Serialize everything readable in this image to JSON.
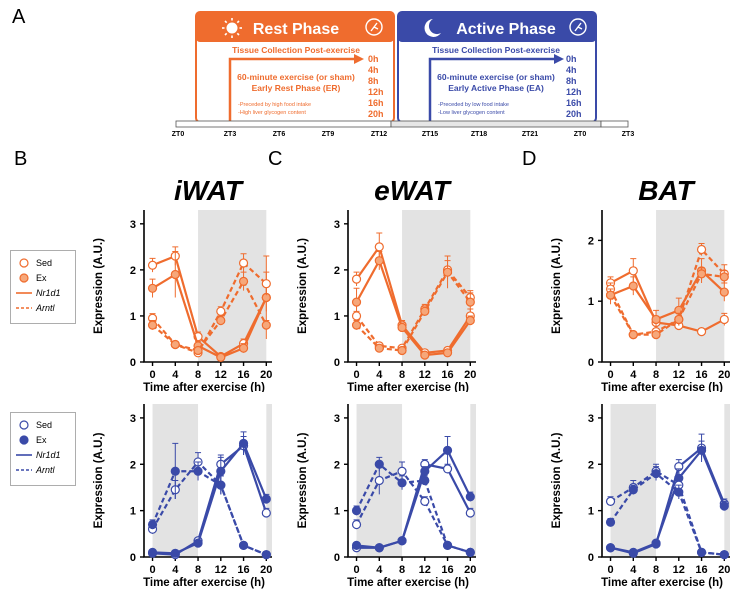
{
  "panel_letters": {
    "a": "A",
    "b": "B",
    "c": "C",
    "d": "D"
  },
  "colors": {
    "orange": "#ef6c2e",
    "blue": "#3a4aa8",
    "gray": "#e3e3e3"
  },
  "timeline": {
    "rest": {
      "title": "Rest Phase",
      "collection": "Tissue Collection Post-exercise",
      "exercise": "60-minute exercise (or sham)",
      "phase": "Early Rest Phase (ER)",
      "notes": [
        "-Preceded by high food intake",
        "-High liver glycogen content"
      ],
      "hours": [
        "0h",
        "4h",
        "8h",
        "12h",
        "16h",
        "20h"
      ]
    },
    "active": {
      "title": "Active Phase",
      "collection": "Tissue Collection Post-exercise",
      "exercise": "60-minute exercise (or sham)",
      "phase": "Early Active Phase (EA)",
      "notes": [
        "-Preceded by low food intake",
        "-Low liver glycogen content"
      ],
      "hours": [
        "0h",
        "4h",
        "8h",
        "12h",
        "16h",
        "20h"
      ]
    },
    "zt_labels": [
      "ZT0",
      "ZT3",
      "ZT6",
      "ZT9",
      "ZT12",
      "ZT15",
      "ZT18",
      "ZT21",
      "ZT0",
      "ZT3"
    ]
  },
  "legends": {
    "sed": "Sed",
    "ex": "Ex",
    "nr1d1": "Nr1d1",
    "arntl": "Arntl"
  },
  "chart_data": [
    {
      "type": "line",
      "title": "iWAT",
      "row": "rest",
      "xlabel": "Time after exercise (h)",
      "ylabel": "Expression (A.U.)",
      "x": [
        0,
        4,
        8,
        12,
        16,
        20
      ],
      "ylim": [
        0,
        3
      ],
      "yticks": [
        0,
        1,
        2,
        3
      ],
      "shade": [
        8,
        20
      ],
      "series": [
        {
          "name": "Sed Nr1d1",
          "values": [
            2.1,
            2.3,
            0.55,
            0.12,
            0.4,
            1.4
          ],
          "err": [
            0.15,
            0.2,
            0.1,
            0.05,
            0.1,
            0.9
          ]
        },
        {
          "name": "Ex Nr1d1",
          "values": [
            1.6,
            1.9,
            0.35,
            0.1,
            0.3,
            1.4
          ],
          "err": [
            0.2,
            0.5,
            0.1,
            0.05,
            0.1,
            0.3
          ]
        },
        {
          "name": "Sed Arntl",
          "values": [
            0.95,
            0.38,
            0.2,
            1.1,
            2.15,
            1.7
          ],
          "err": [
            0.1,
            0.05,
            0.05,
            0.1,
            0.2,
            0.25
          ]
        },
        {
          "name": "Ex Arntl",
          "values": [
            0.8,
            0.38,
            0.25,
            0.9,
            1.75,
            0.8
          ],
          "err": [
            0.1,
            0.05,
            0.05,
            0.1,
            0.2,
            0.1
          ]
        }
      ]
    },
    {
      "type": "line",
      "title": "eWAT",
      "row": "rest",
      "xlabel": "Time after exercise (h)",
      "ylabel": "Expression (A.U.)",
      "x": [
        0,
        4,
        8,
        12,
        16,
        20
      ],
      "ylim": [
        0,
        3
      ],
      "yticks": [
        0,
        1,
        2,
        3
      ],
      "shade": [
        8,
        20
      ],
      "series": [
        {
          "name": "Sed Nr1d1",
          "values": [
            1.8,
            2.5,
            0.8,
            0.2,
            0.25,
            1.0
          ],
          "err": [
            0.15,
            0.3,
            0.1,
            0.05,
            0.05,
            0.15
          ]
        },
        {
          "name": "Ex Nr1d1",
          "values": [
            1.3,
            2.2,
            0.75,
            0.15,
            0.2,
            0.9
          ],
          "err": [
            0.3,
            0.2,
            0.1,
            0.05,
            0.05,
            0.1
          ]
        },
        {
          "name": "Sed Arntl",
          "values": [
            1.0,
            0.35,
            0.3,
            1.15,
            2.0,
            1.4
          ],
          "err": [
            0.1,
            0.05,
            0.05,
            0.1,
            0.2,
            0.15
          ]
        },
        {
          "name": "Ex Arntl",
          "values": [
            0.8,
            0.3,
            0.25,
            1.1,
            1.95,
            1.3
          ],
          "err": [
            0.1,
            0.05,
            0.05,
            0.1,
            0.35,
            0.2
          ]
        }
      ]
    },
    {
      "type": "line",
      "title": "BAT",
      "row": "rest",
      "xlabel": "Time after exercise (h)",
      "ylabel": "Expression (A.U.)",
      "x": [
        0,
        4,
        8,
        12,
        16,
        20
      ],
      "ylim": [
        0,
        2
      ],
      "yticks": [
        0,
        1,
        2
      ],
      "shade": [
        8,
        20
      ],
      "series": [
        {
          "name": "Sed Nr1d1",
          "values": [
            1.3,
            1.5,
            0.65,
            0.6,
            0.5,
            0.7
          ],
          "err": [
            0.1,
            0.2,
            0.1,
            0.05,
            0.05,
            0.1
          ]
        },
        {
          "name": "Ex Nr1d1",
          "values": [
            1.1,
            1.25,
            0.7,
            0.85,
            1.5,
            1.15
          ],
          "err": [
            0.15,
            0.15,
            0.15,
            0.2,
            0.2,
            0.15
          ]
        },
        {
          "name": "Sed Arntl",
          "values": [
            1.2,
            0.45,
            0.5,
            0.7,
            1.85,
            1.45
          ],
          "err": [
            0.1,
            0.05,
            0.05,
            0.1,
            0.1,
            0.15
          ]
        },
        {
          "name": "Ex Arntl",
          "values": [
            1.1,
            0.45,
            0.45,
            0.7,
            1.45,
            1.4
          ],
          "err": [
            0.1,
            0.05,
            0.05,
            0.1,
            0.1,
            0.1
          ]
        }
      ]
    },
    {
      "type": "line",
      "title": "",
      "row": "active",
      "xlabel": "Time after exercise (h)",
      "ylabel": "Expression (A.U.)",
      "x": [
        0,
        4,
        8,
        12,
        16,
        20
      ],
      "ylim": [
        0,
        3
      ],
      "yticks": [
        0,
        1,
        2,
        3
      ],
      "shade": [
        0,
        8
      ],
      "shade2": [
        20,
        20.8
      ],
      "series": [
        {
          "name": "Sed Nr1d1",
          "values": [
            0.08,
            0.05,
            0.35,
            2.0,
            2.4,
            0.95
          ],
          "err": [
            0.03,
            0.03,
            0.05,
            0.2,
            0.2,
            0.1
          ]
        },
        {
          "name": "Ex Nr1d1",
          "values": [
            0.1,
            0.08,
            0.3,
            1.85,
            2.45,
            1.25
          ],
          "err": [
            0.03,
            0.03,
            0.05,
            0.3,
            0.25,
            0.1
          ]
        },
        {
          "name": "Sed Arntl",
          "values": [
            0.6,
            1.45,
            2.05,
            1.55,
            0.25,
            0.05
          ],
          "err": [
            0.1,
            0.2,
            0.2,
            0.2,
            0.05,
            0.02
          ]
        },
        {
          "name": "Ex Arntl",
          "values": [
            0.7,
            1.85,
            1.85,
            1.55,
            0.25,
            0.05
          ],
          "err": [
            0.1,
            0.6,
            0.2,
            0.2,
            0.05,
            0.02
          ]
        }
      ]
    },
    {
      "type": "line",
      "title": "",
      "row": "active",
      "xlabel": "Time after exercise (h)",
      "ylabel": "Expression (A.U.)",
      "x": [
        0,
        4,
        8,
        12,
        16,
        20
      ],
      "ylim": [
        0,
        3
      ],
      "yticks": [
        0,
        1,
        2,
        3
      ],
      "shade": [
        0,
        8
      ],
      "shade2": [
        20,
        20.8
      ],
      "series": [
        {
          "name": "Sed Nr1d1",
          "values": [
            0.2,
            0.2,
            0.35,
            2.0,
            1.9,
            0.95
          ],
          "err": [
            0.03,
            0.03,
            0.05,
            0.1,
            0.1,
            0.1
          ]
        },
        {
          "name": "Ex Nr1d1",
          "values": [
            0.25,
            0.2,
            0.35,
            1.85,
            2.3,
            1.3
          ],
          "err": [
            0.03,
            0.03,
            0.05,
            0.1,
            0.3,
            0.1
          ]
        },
        {
          "name": "Sed Arntl",
          "values": [
            0.7,
            1.65,
            1.85,
            1.2,
            0.25,
            0.1
          ],
          "err": [
            0.1,
            0.3,
            0.2,
            0.1,
            0.05,
            0.02
          ]
        },
        {
          "name": "Ex Arntl",
          "values": [
            1.0,
            2.0,
            1.6,
            1.65,
            0.25,
            0.1
          ],
          "err": [
            0.1,
            0.15,
            0.15,
            0.1,
            0.05,
            0.02
          ]
        }
      ]
    },
    {
      "type": "line",
      "title": "",
      "row": "active",
      "xlabel": "Time after exercise (h)",
      "ylabel": "Expression (A.U.)",
      "x": [
        0,
        4,
        8,
        12,
        16,
        20
      ],
      "ylim": [
        0,
        3
      ],
      "yticks": [
        0,
        1,
        2,
        3
      ],
      "shade": [
        0,
        8
      ],
      "shade2": [
        20,
        20.8
      ],
      "series": [
        {
          "name": "Sed Nr1d1",
          "values": [
            0.2,
            0.08,
            0.28,
            1.95,
            2.35,
            1.15
          ],
          "err": [
            0.03,
            0.03,
            0.05,
            0.15,
            0.3,
            0.1
          ]
        },
        {
          "name": "Ex Nr1d1",
          "values": [
            0.2,
            0.1,
            0.3,
            1.7,
            2.3,
            1.1
          ],
          "err": [
            0.03,
            0.03,
            0.05,
            0.2,
            0.2,
            0.1
          ]
        },
        {
          "name": "Sed Arntl",
          "values": [
            1.2,
            1.5,
            1.85,
            1.55,
            0.1,
            0.05
          ],
          "err": [
            0.1,
            0.15,
            0.15,
            0.15,
            0.05,
            0.02
          ]
        },
        {
          "name": "Ex Arntl",
          "values": [
            0.75,
            1.45,
            1.8,
            1.4,
            0.1,
            0.05
          ],
          "err": [
            0.08,
            0.1,
            0.15,
            0.15,
            0.05,
            0.02
          ]
        }
      ]
    }
  ]
}
